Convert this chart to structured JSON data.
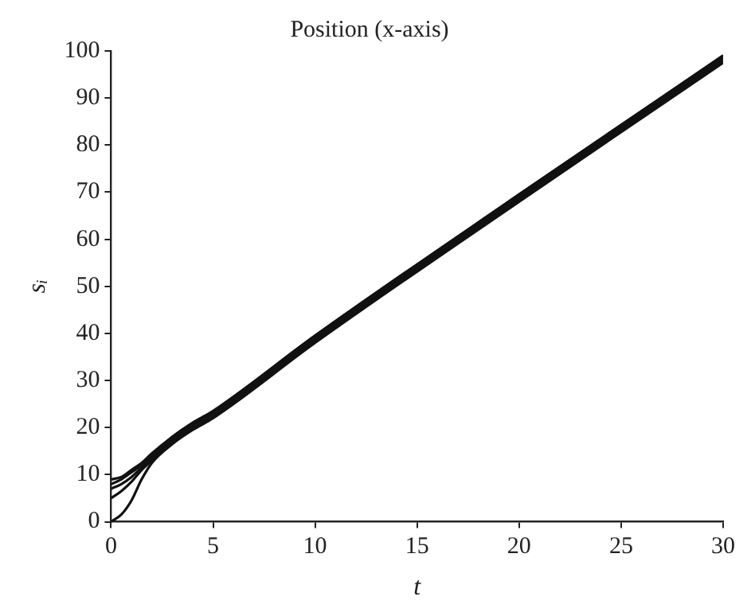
{
  "chart_data": {
    "type": "line",
    "title": "Position (x-axis)",
    "xlabel": "t",
    "ylabel": "sᵢ",
    "x": [
      0,
      0.5,
      1,
      1.5,
      2,
      3,
      4,
      5,
      10,
      20,
      30
    ],
    "series": [
      {
        "color": "#111111",
        "values": [
          0,
          1.5,
          4.5,
          9,
          12.5,
          16.5,
          19.5,
          22,
          38,
          68,
          97.5
        ]
      },
      {
        "color": "#111111",
        "values": [
          5,
          6.5,
          8.5,
          11,
          13,
          17,
          20,
          22.5,
          38.5,
          68.5,
          98
        ]
      },
      {
        "color": "#111111",
        "values": [
          7,
          8,
          9.5,
          11.5,
          13.5,
          17.5,
          20.5,
          23,
          39,
          69,
          98.5
        ]
      },
      {
        "color": "#111111",
        "values": [
          8,
          9,
          10.5,
          12,
          14,
          18,
          21,
          23.5,
          39.5,
          69.5,
          99
        ]
      },
      {
        "color": "#111111",
        "values": [
          9,
          9.5,
          11,
          12.5,
          14.5,
          18,
          21,
          23.5,
          39.5,
          69.5,
          99
        ]
      }
    ],
    "xlim": [
      0,
      30
    ],
    "xticks": [
      0,
      5,
      10,
      15,
      20,
      25,
      30
    ],
    "ylim": [
      0,
      100
    ],
    "yticks": [
      0,
      10,
      20,
      30,
      40,
      50,
      60,
      70,
      80,
      90,
      100
    ],
    "grid": false,
    "legend": false,
    "marker": "none",
    "line_style": "solid"
  }
}
